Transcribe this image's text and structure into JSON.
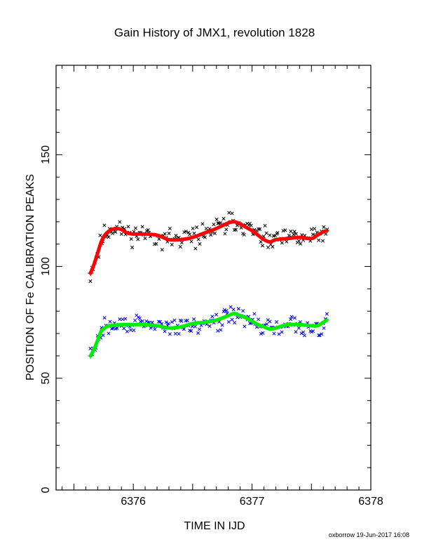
{
  "chart_data": {
    "type": "scatter",
    "title": "Gain History of JMX1, revolution 1828",
    "xlabel": "TIME IN IJD",
    "ylabel": "POSITION OF Fe CALIBRATION PEAKS",
    "xlim": [
      6375.35,
      6378.0
    ],
    "ylim": [
      0,
      190
    ],
    "x_ticks": [
      6376,
      6377,
      6378
    ],
    "x_tick_labels": [
      "6376",
      "6377",
      "6378"
    ],
    "y_ticks": [
      0,
      50,
      100,
      150
    ],
    "y_tick_labels": [
      "0",
      "50",
      "100",
      "150"
    ],
    "grid": false,
    "legend": "none",
    "series": [
      {
        "color": "#ff0000",
        "mode": "smooth-line",
        "x": [
          6375.64,
          6375.67,
          6375.7,
          6375.73,
          6375.76,
          6375.8,
          6375.85,
          6375.9,
          6375.95,
          6376.0,
          6376.1,
          6376.2,
          6376.3,
          6376.4,
          6376.5,
          6376.6,
          6376.7,
          6376.8,
          6376.85,
          6376.9,
          6376.95,
          6377.0,
          6377.05,
          6377.1,
          6377.15,
          6377.2,
          6377.3,
          6377.4,
          6377.5,
          6377.55,
          6377.6,
          6377.63
        ],
        "y": [
          97,
          101,
          106,
          111,
          114,
          116,
          117,
          116.5,
          115,
          114.5,
          114.5,
          114,
          112,
          112,
          113,
          115,
          117,
          119.5,
          120,
          119,
          117.5,
          116,
          114,
          112,
          111,
          112,
          112.5,
          113,
          112.5,
          114,
          115.5,
          116
        ]
      },
      {
        "color": "#00ee00",
        "mode": "smooth-line",
        "x": [
          6375.64,
          6375.67,
          6375.7,
          6375.73,
          6375.76,
          6375.8,
          6375.9,
          6376.0,
          6376.1,
          6376.2,
          6376.3,
          6376.4,
          6376.5,
          6376.6,
          6376.7,
          6376.8,
          6376.85,
          6376.9,
          6376.95,
          6377.0,
          6377.05,
          6377.1,
          6377.15,
          6377.2,
          6377.3,
          6377.4,
          6377.5,
          6377.55,
          6377.6,
          6377.63
        ],
        "y": [
          60,
          63,
          67,
          71,
          72.5,
          73.5,
          74,
          74,
          74,
          73.5,
          72.5,
          73,
          74.5,
          75,
          76,
          78,
          79,
          78,
          77,
          75.5,
          74,
          73,
          72,
          72.5,
          74,
          74,
          73.5,
          73.5,
          75,
          76
        ]
      },
      {
        "color": "#000000",
        "mode": "scatter-samples",
        "around_series": 0,
        "spread": 4.5,
        "count": 170,
        "seed": 11,
        "x": [
          6375.64,
          6377.63
        ]
      },
      {
        "color": "#0000ee",
        "mode": "scatter-samples",
        "around_series": 1,
        "spread": 4.0,
        "count": 170,
        "seed": 29,
        "x": [
          6375.64,
          6377.63
        ]
      }
    ]
  },
  "footer": {
    "credit": "oxborrow 19-Jun-2017 16:08"
  }
}
